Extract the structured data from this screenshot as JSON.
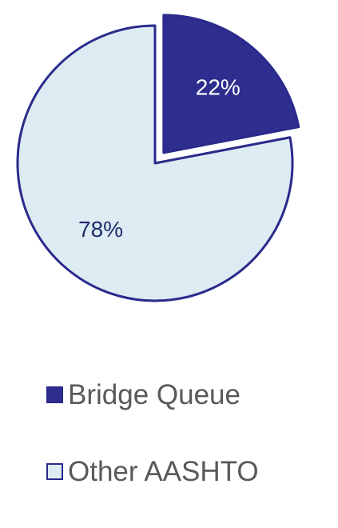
{
  "chart_data": {
    "type": "pie",
    "series": [
      {
        "name": "Bridge Queue",
        "value": 22,
        "label": "22%",
        "color": "#2e2e8f",
        "label_color": "#ffffff",
        "exploded": true
      },
      {
        "name": "Other AASHTO",
        "value": 78,
        "label": "78%",
        "color": "#dcecf2",
        "label_color": "#1f2a6b",
        "exploded": false
      }
    ],
    "legend_position": "bottom",
    "border_color": "#2a2a8c"
  }
}
